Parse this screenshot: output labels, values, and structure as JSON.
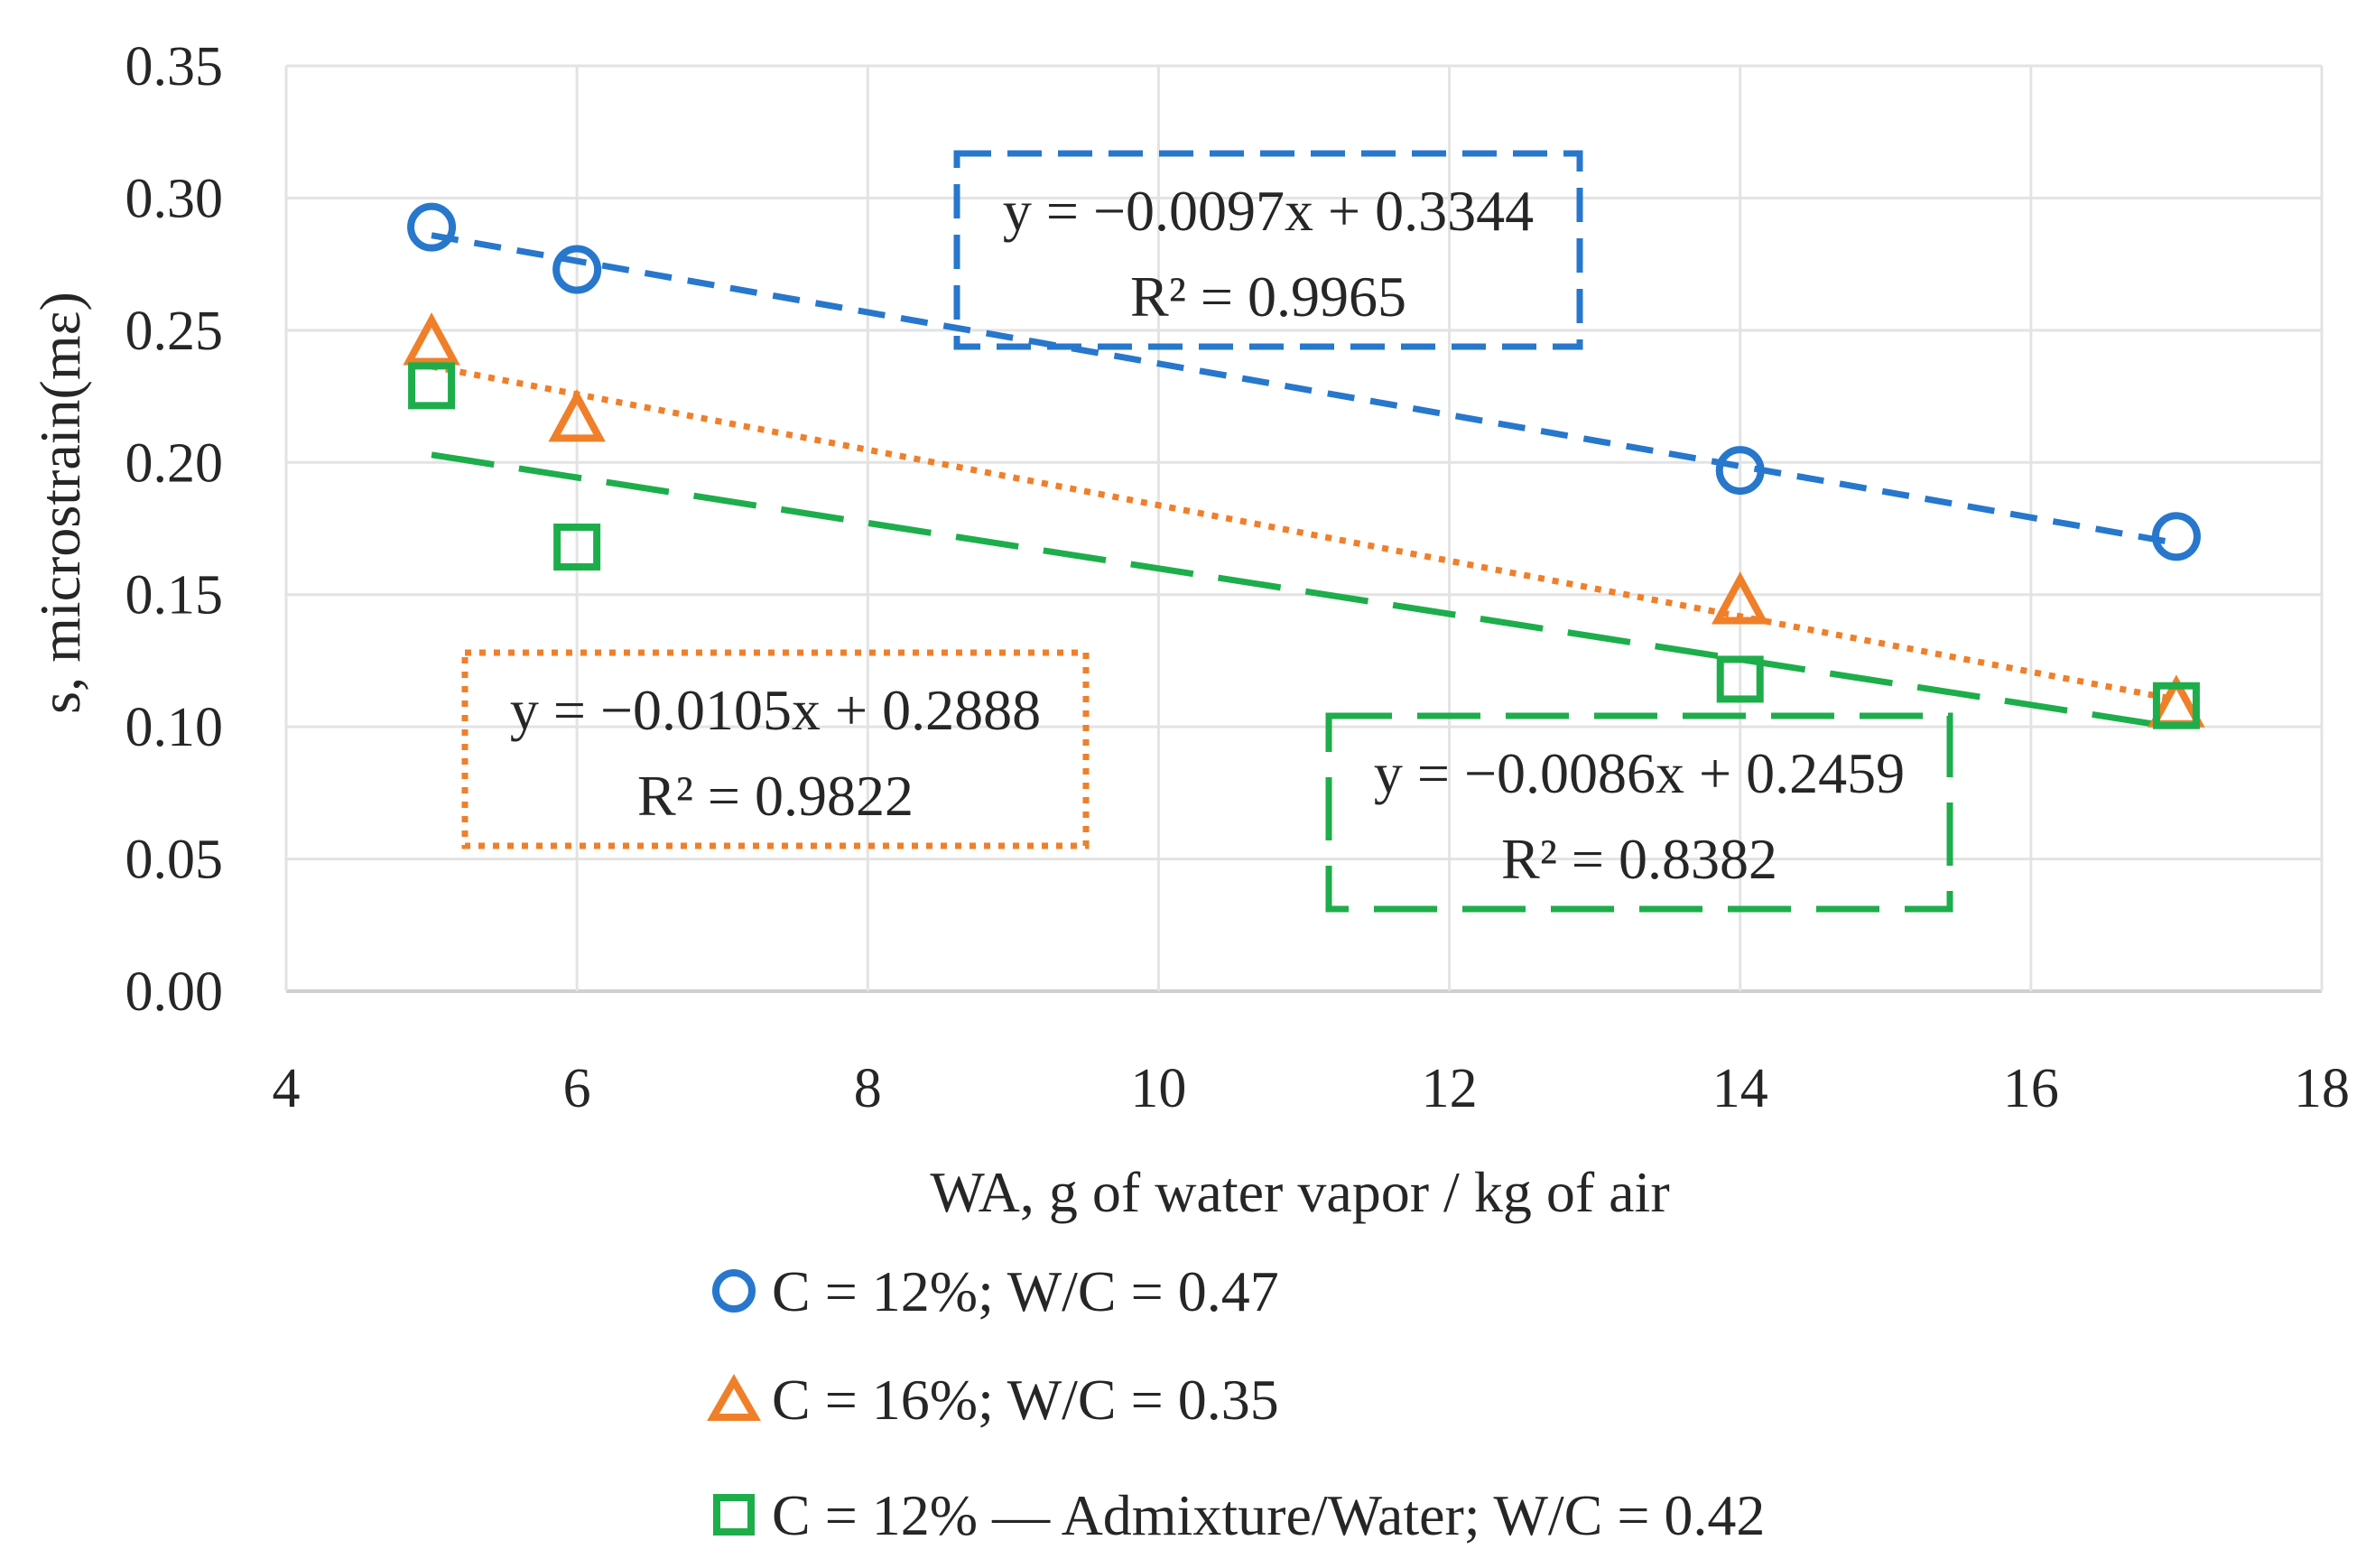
{
  "chart_data": {
    "type": "scatter",
    "xlabel": "WA, g of water vapor / kg of air",
    "ylabel": "s, microstrain(mε)",
    "xlim": [
      4,
      18
    ],
    "ylim": [
      0,
      0.35
    ],
    "x_ticks": [
      "4",
      "6",
      "8",
      "10",
      "12",
      "14",
      "16",
      "18"
    ],
    "y_ticks": [
      "0.00",
      "0.05",
      "0.10",
      "0.15",
      "0.20",
      "0.25",
      "0.30",
      "0.35"
    ],
    "grid": true,
    "legend_position": "bottom",
    "series": [
      {
        "name": "C = 12%; W/C = 0.47",
        "marker": "circle",
        "color": "#2777CC",
        "x": [
          5,
          6,
          14,
          17
        ],
        "y": [
          0.289,
          0.273,
          0.197,
          0.172
        ],
        "trendline": {
          "slope": -0.0097,
          "intercept": 0.3344,
          "style": "dashed",
          "equation": "y = −0.0097x + 0.3344",
          "r2": "R² = 0.9965"
        }
      },
      {
        "name": "C = 16%; W/C = 0.35",
        "marker": "triangle",
        "color": "#F07F2A",
        "x": [
          5,
          6,
          14,
          17
        ],
        "y": [
          0.245,
          0.216,
          0.147,
          0.108
        ],
        "trendline": {
          "slope": -0.0105,
          "intercept": 0.2888,
          "style": "dotted",
          "equation": "y = −0.0105x + 0.2888",
          "r2": "R² = 0.9822"
        }
      },
      {
        "name": "C = 12% — Admixture/Water; W/C = 0.42",
        "marker": "square",
        "color": "#1DAE4B",
        "x": [
          5,
          6,
          14,
          17
        ],
        "y": [
          0.229,
          0.168,
          0.118,
          0.108
        ],
        "trendline": {
          "slope": -0.0086,
          "intercept": 0.2459,
          "style": "long-dash",
          "equation": "y = −0.0086x + 0.2459",
          "r2": "R² = 0.8382"
        }
      }
    ]
  }
}
